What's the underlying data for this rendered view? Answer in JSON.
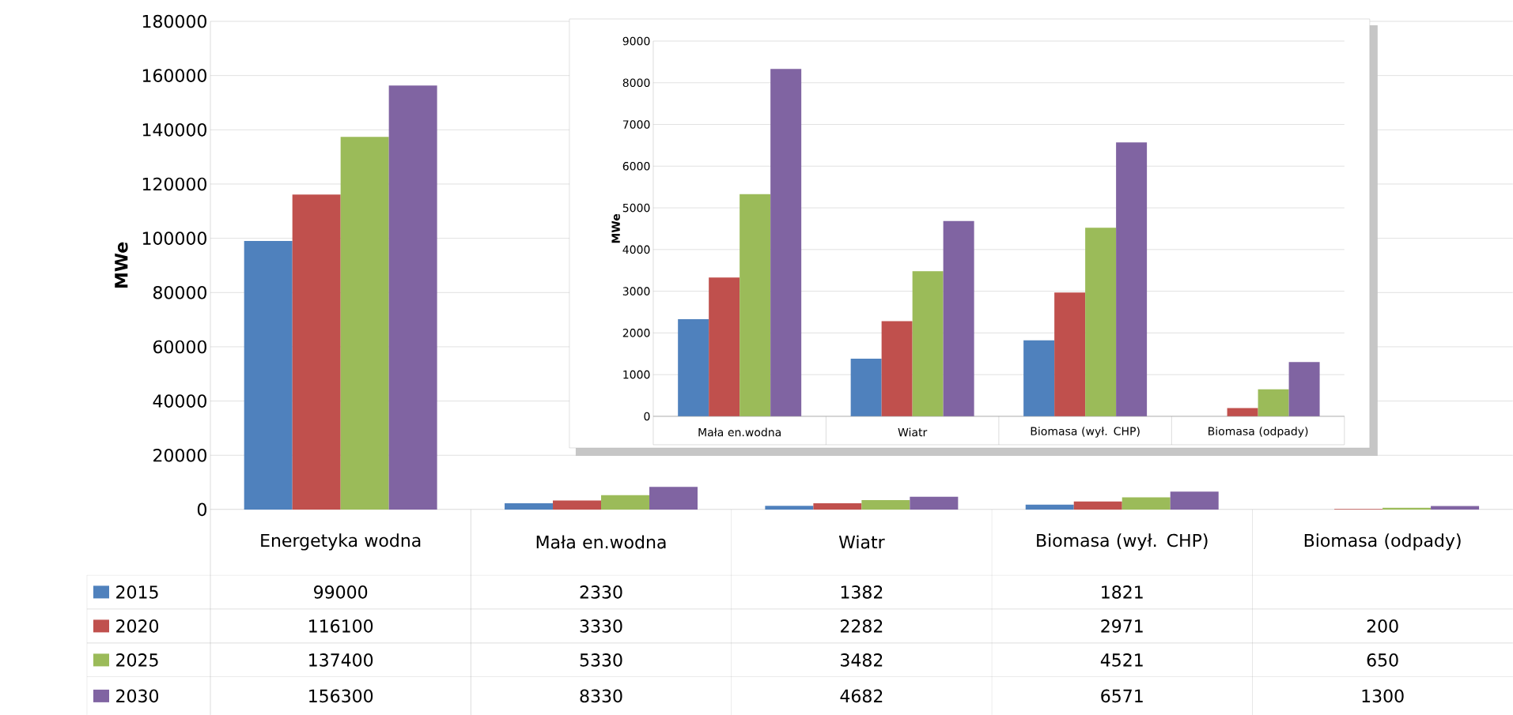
{
  "chart_data": [
    {
      "type": "bar",
      "ylabel": "MWe",
      "categories": [
        "Energetyka wodna",
        "Mała en.wodna",
        "Wiatr",
        "Biomasa (wył. CHP)",
        "Biomasa (odpady)"
      ],
      "series": [
        {
          "name": "2015",
          "color": "#4f81bd",
          "values": [
            99000,
            2330,
            1382,
            1821,
            null
          ]
        },
        {
          "name": "2020",
          "color": "#c0504d",
          "values": [
            116100,
            3330,
            2282,
            2971,
            200
          ]
        },
        {
          "name": "2025",
          "color": "#9bbb59",
          "values": [
            137400,
            5330,
            3482,
            4521,
            650
          ]
        },
        {
          "name": "2030",
          "color": "#8064a2",
          "values": [
            156300,
            8330,
            4682,
            6571,
            1300
          ]
        }
      ],
      "ylim": [
        0,
        180000
      ],
      "yticks": [
        0,
        20000,
        40000,
        60000,
        80000,
        100000,
        120000,
        140000,
        160000,
        180000
      ],
      "grid": "y",
      "legend": "bottom",
      "data_labels": true
    },
    {
      "type": "bar",
      "ylabel": "MWe",
      "categories": [
        "Mała en.wodna",
        "Wiatr",
        "Biomasa (wył. CHP)",
        "Biomasa (odpady)"
      ],
      "series": [
        {
          "color": "#4f81bd",
          "values": [
            2330,
            1382,
            1821,
            null
          ]
        },
        {
          "color": "#c0504d",
          "values": [
            3330,
            2282,
            2971,
            200
          ]
        },
        {
          "color": "#9bbb59",
          "values": [
            5330,
            3482,
            4521,
            650
          ]
        },
        {
          "color": "#8064a2",
          "values": [
            8330,
            4682,
            6571,
            1300
          ]
        }
      ],
      "ylim": [
        0,
        9000
      ],
      "yticks": [
        0,
        1000,
        2000,
        3000,
        4000,
        5000,
        6000,
        7000,
        8000,
        9000
      ],
      "grid": "y"
    }
  ]
}
